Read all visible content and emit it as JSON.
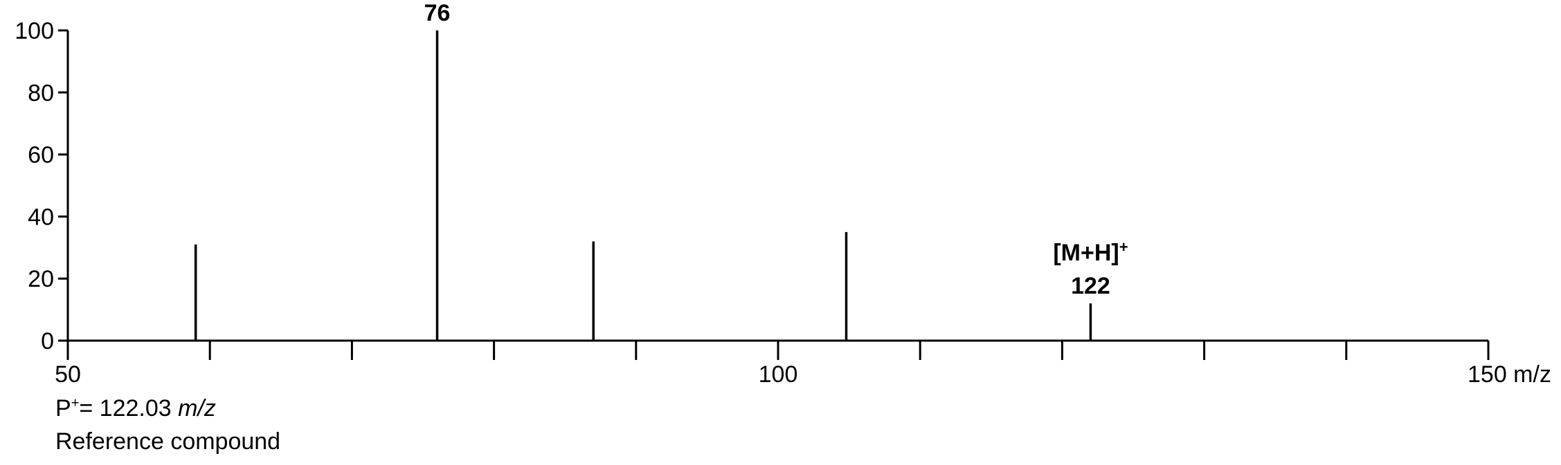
{
  "chart_data": {
    "type": "bar",
    "title": "",
    "xlabel": "m/z",
    "ylabel": "",
    "xlim": [
      50,
      150
    ],
    "ylim": [
      0,
      100
    ],
    "x_tick_labels": [
      {
        "value": 50,
        "label": "50"
      },
      {
        "value": 100,
        "label": "100"
      },
      {
        "value": 150,
        "label": "150 m/z"
      }
    ],
    "x_minor_ticks": [
      60,
      70,
      80,
      90,
      110,
      120,
      130,
      140
    ],
    "y_ticks": [
      0,
      20,
      40,
      60,
      80,
      100
    ],
    "peaks": [
      {
        "mz": 59,
        "intensity": 31
      },
      {
        "mz": 76,
        "intensity": 100
      },
      {
        "mz": 87,
        "intensity": 32
      },
      {
        "mz": 104.8,
        "intensity": 35
      },
      {
        "mz": 122,
        "intensity": 12
      }
    ],
    "annotations": [
      {
        "mz": 76,
        "lines": [
          "76"
        ]
      },
      {
        "mz": 122,
        "lines": [
          "[M+H]",
          "122"
        ],
        "superscript": "+"
      }
    ]
  },
  "caption": {
    "p_symbol": "P",
    "p_superscript": "+",
    "p_value": "= 122.03 ",
    "p_unit": "m/z",
    "compound": "Reference compound"
  },
  "colors": {
    "axis": "#000000",
    "peaks": "#000000"
  }
}
